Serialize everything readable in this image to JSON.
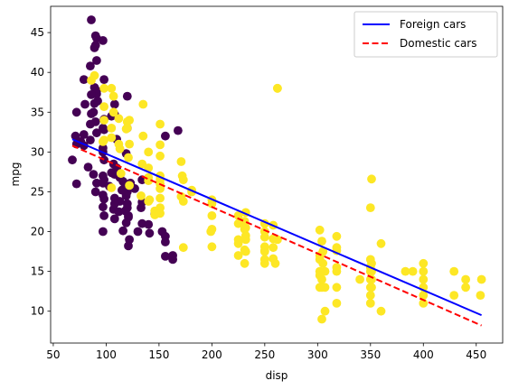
{
  "chart_data": {
    "type": "scatter",
    "xlabel": "disp",
    "ylabel": "mpg",
    "xlim": [
      47.5,
      475
    ],
    "ylim": [
      6.0,
      48.3
    ],
    "xticks": [
      50,
      100,
      150,
      200,
      250,
      300,
      350,
      400,
      450
    ],
    "yticks": [
      10,
      15,
      20,
      25,
      30,
      35,
      40,
      45
    ],
    "legend_position": "top-right",
    "colors": {
      "foreign_points": "#440154",
      "domestic_points": "#fde725",
      "foreign_line": "#0000ff",
      "domestic_line": "#ff0000"
    },
    "series": [
      {
        "kind": "points",
        "group": "foreign",
        "points": [
          [
            86,
            46.6
          ],
          [
            90,
            44.6
          ],
          [
            91,
            44.3
          ],
          [
            90,
            43.4
          ],
          [
            97,
            44
          ],
          [
            89,
            43.1
          ],
          [
            91,
            41.5
          ],
          [
            85,
            40.8
          ],
          [
            98,
            39.1
          ],
          [
            79,
            39.1
          ],
          [
            89,
            38.1
          ],
          [
            91,
            37.7
          ],
          [
            91,
            37.3
          ],
          [
            86,
            37.2
          ],
          [
            89,
            36.1
          ],
          [
            92,
            36.4
          ],
          [
            80,
            36
          ],
          [
            108,
            36
          ],
          [
            86,
            34.8
          ],
          [
            98,
            34.1
          ],
          [
            120,
            37
          ],
          [
            88,
            35
          ],
          [
            90,
            33.8
          ],
          [
            85,
            33.5
          ],
          [
            105,
            34.5
          ],
          [
            72,
            35
          ],
          [
            108,
            34.7
          ],
          [
            97,
            33
          ],
          [
            98,
            32.8
          ],
          [
            120,
            33
          ],
          [
            91,
            32.4
          ],
          [
            79,
            32.2
          ],
          [
            71,
            32
          ],
          [
            72,
            31
          ],
          [
            76,
            31.3
          ],
          [
            85,
            31.5
          ],
          [
            110,
            31.6
          ],
          [
            79,
            30.8
          ],
          [
            97,
            30
          ],
          [
            97,
            30.5
          ],
          [
            119,
            29.8
          ],
          [
            156,
            32
          ],
          [
            168,
            32.7
          ],
          [
            98,
            29
          ],
          [
            107,
            28.5
          ],
          [
            83,
            28.1
          ],
          [
            110,
            28
          ],
          [
            68,
            29
          ],
          [
            88,
            27.2
          ],
          [
            97,
            27
          ],
          [
            108,
            27.2
          ],
          [
            98,
            26.5
          ],
          [
            91,
            26.1
          ],
          [
            103,
            25.7
          ],
          [
            115,
            25.2
          ],
          [
            97,
            24.6
          ],
          [
            108,
            24.2
          ],
          [
            119,
            24.5
          ],
          [
            120,
            25
          ],
          [
            121,
            25.5
          ],
          [
            116,
            25.3
          ],
          [
            90,
            25
          ],
          [
            98,
            24.1
          ],
          [
            113,
            23.8
          ],
          [
            97,
            23.1
          ],
          [
            107,
            22.8
          ],
          [
            121,
            21.8
          ],
          [
            133,
            23
          ],
          [
            98,
            22
          ],
          [
            72,
            26
          ],
          [
            120,
            23
          ],
          [
            121,
            22
          ],
          [
            119,
            21.1
          ],
          [
            134,
            21
          ],
          [
            146,
            22.2
          ],
          [
            141,
            19.8
          ],
          [
            121,
            18.2
          ],
          [
            156,
            16.9
          ],
          [
            163,
            16.5
          ],
          [
            163,
            17
          ],
          [
            122,
            19
          ],
          [
            116,
            20.1
          ],
          [
            97,
            20
          ],
          [
            130,
            20
          ],
          [
            153,
            20
          ],
          [
            156,
            19.4
          ],
          [
            156,
            18.7
          ],
          [
            120,
            23.5
          ],
          [
            140,
            20.9
          ],
          [
            134,
            23.7
          ],
          [
            108,
            23.5
          ],
          [
            97,
            26.1
          ],
          [
            105,
            27.4
          ],
          [
            110,
            27.3
          ],
          [
            113,
            26.8
          ],
          [
            116,
            26.3
          ],
          [
            119,
            25.9
          ],
          [
            123,
            26.1
          ],
          [
            134,
            26.5
          ],
          [
            127,
            25.4
          ],
          [
            112,
            22.5
          ],
          [
            118,
            22.6
          ],
          [
            108,
            21.6
          ]
        ]
      },
      {
        "kind": "points",
        "group": "domestic",
        "points": [
          [
            262,
            38
          ],
          [
            86,
            39
          ],
          [
            89,
            39.6
          ],
          [
            98,
            38
          ],
          [
            105,
            38
          ],
          [
            107,
            37
          ],
          [
            135,
            36
          ],
          [
            98,
            35.7
          ],
          [
            107,
            35
          ],
          [
            112,
            34.2
          ],
          [
            98,
            34
          ],
          [
            122,
            34
          ],
          [
            120,
            33.8
          ],
          [
            151,
            33.5
          ],
          [
            105,
            33
          ],
          [
            119,
            32.9
          ],
          [
            120,
            33
          ],
          [
            135,
            32
          ],
          [
            151,
            30.9
          ],
          [
            98,
            31.5
          ],
          [
            105,
            31.8
          ],
          [
            112,
            31
          ],
          [
            122,
            31
          ],
          [
            140,
            30
          ],
          [
            113,
            30.4
          ],
          [
            97,
            31.3
          ],
          [
            151,
            29.5
          ],
          [
            171,
            28.8
          ],
          [
            134,
            28.5
          ],
          [
            140,
            28
          ],
          [
            151,
            27
          ],
          [
            121,
            29.3
          ],
          [
            114,
            27.3
          ],
          [
            140,
            26.8
          ],
          [
            151,
            26.5
          ],
          [
            172,
            27
          ],
          [
            140,
            26.4
          ],
          [
            105,
            25.5
          ],
          [
            151,
            26
          ],
          [
            173,
            26.5
          ],
          [
            181,
            25.2
          ],
          [
            151,
            25.4
          ],
          [
            122,
            25.8
          ],
          [
            171,
            24.4
          ],
          [
            151,
            24.2
          ],
          [
            133,
            24.5
          ],
          [
            173,
            23.8
          ],
          [
            140,
            23.8
          ],
          [
            141,
            24
          ],
          [
            146,
            22.6
          ],
          [
            151,
            23
          ],
          [
            181,
            25
          ],
          [
            200,
            24
          ],
          [
            146,
            22.1
          ],
          [
            200,
            23.5
          ],
          [
            151,
            22.3
          ],
          [
            232,
            22.4
          ],
          [
            200,
            22
          ],
          [
            231,
            21.3
          ],
          [
            225,
            21
          ],
          [
            232,
            20.5
          ],
          [
            250,
            21
          ],
          [
            225,
            22
          ],
          [
            199,
            20
          ],
          [
            200,
            20.3
          ],
          [
            231,
            20.3
          ],
          [
            232,
            19.5
          ],
          [
            250,
            20
          ],
          [
            258,
            20.8
          ],
          [
            250,
            19.3
          ],
          [
            258,
            19.1
          ],
          [
            262,
            19
          ],
          [
            225,
            19
          ],
          [
            232,
            19
          ],
          [
            250,
            18.1
          ],
          [
            250,
            17.6
          ],
          [
            250,
            17.5
          ],
          [
            258,
            18
          ],
          [
            225,
            18.5
          ],
          [
            231,
            17.7
          ],
          [
            232,
            17.5
          ],
          [
            250,
            16.5
          ],
          [
            258,
            16.6
          ],
          [
            231,
            16
          ],
          [
            250,
            16
          ],
          [
            260,
            16
          ],
          [
            225,
            17
          ],
          [
            200,
            18.1
          ],
          [
            173,
            18
          ],
          [
            302,
            20.2
          ],
          [
            318,
            19.4
          ],
          [
            304,
            18.8
          ],
          [
            302,
            17
          ],
          [
            305,
            17.5
          ],
          [
            318,
            17.6
          ],
          [
            318,
            18
          ],
          [
            302,
            16.5
          ],
          [
            305,
            16
          ],
          [
            307,
            15
          ],
          [
            302,
            15
          ],
          [
            304,
            14
          ],
          [
            318,
            15.5
          ],
          [
            318,
            15
          ],
          [
            302,
            14.5
          ],
          [
            304,
            13
          ],
          [
            307,
            13
          ],
          [
            318,
            13
          ],
          [
            302,
            13
          ],
          [
            350,
            16.5
          ],
          [
            351,
            16
          ],
          [
            350,
            15.5
          ],
          [
            350,
            15
          ],
          [
            360,
            18.5
          ],
          [
            351,
            15
          ],
          [
            350,
            14
          ],
          [
            351,
            14
          ],
          [
            351,
            13
          ],
          [
            350,
            13
          ],
          [
            350,
            12
          ],
          [
            350,
            11
          ],
          [
            351,
            26.6
          ],
          [
            350,
            23
          ],
          [
            400,
            16
          ],
          [
            400,
            15
          ],
          [
            383,
            15
          ],
          [
            390,
            15
          ],
          [
            400,
            14
          ],
          [
            400,
            13
          ],
          [
            400,
            12
          ],
          [
            400,
            11
          ],
          [
            429,
            12
          ],
          [
            429,
            15
          ],
          [
            440,
            14
          ],
          [
            455,
            14
          ],
          [
            454,
            12
          ],
          [
            440,
            13
          ],
          [
            360,
            10
          ],
          [
            307,
            10
          ],
          [
            304,
            9
          ],
          [
            318,
            11
          ],
          [
            340,
            14
          ],
          [
            262,
            38
          ]
        ]
      }
    ],
    "lines": [
      {
        "name": "Foreign cars",
        "x": [
          68,
          455
        ],
        "y": [
          31.6,
          9.5
        ],
        "color": "#0000ff",
        "style": "solid"
      },
      {
        "name": "Domestic cars",
        "x": [
          68,
          455
        ],
        "y": [
          30.8,
          8.2
        ],
        "color": "#ff0000",
        "style": "dashed"
      }
    ]
  }
}
